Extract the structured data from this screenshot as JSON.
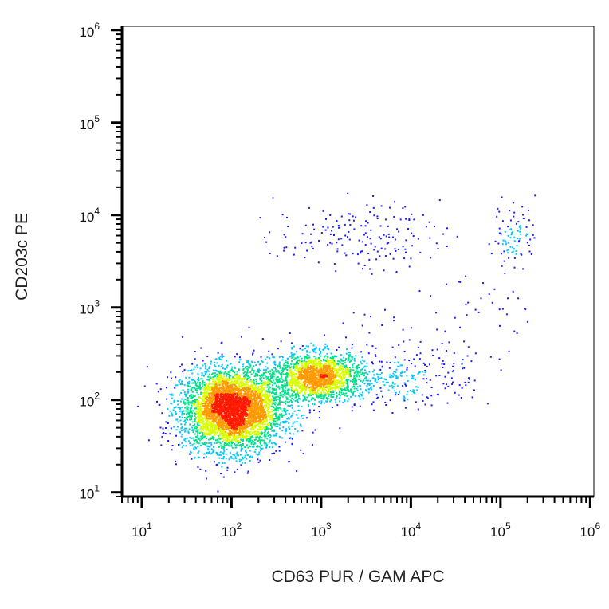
{
  "chart_data": {
    "type": "scatter",
    "title": "",
    "xlabel": "CD63 PUR / GAM APC",
    "ylabel": "CD203c PE",
    "x_scale": "log",
    "y_scale": "log",
    "xlim": [
      6,
      1100000
    ],
    "ylim": [
      9,
      1100000
    ],
    "x_ticks": [
      {
        "value": 10,
        "base": "10",
        "exp": "1"
      },
      {
        "value": 100,
        "base": "10",
        "exp": "2"
      },
      {
        "value": 1000,
        "base": "10",
        "exp": "3"
      },
      {
        "value": 10000,
        "base": "10",
        "exp": "4"
      },
      {
        "value": 100000,
        "base": "10",
        "exp": "5"
      },
      {
        "value": 1000000,
        "base": "10",
        "exp": "6"
      }
    ],
    "y_ticks": [
      {
        "value": 10,
        "base": "10",
        "exp": "1"
      },
      {
        "value": 100,
        "base": "10",
        "exp": "2"
      },
      {
        "value": 1000,
        "base": "10",
        "exp": "3"
      },
      {
        "value": 10000,
        "base": "10",
        "exp": "4"
      },
      {
        "value": 100000,
        "base": "10",
        "exp": "5"
      },
      {
        "value": 1000000,
        "base": "10",
        "exp": "6"
      }
    ],
    "grid": false,
    "legend": "none",
    "density_colormap": [
      "#1a1aff",
      "#00c8ff",
      "#00e08a",
      "#d8ff00",
      "#ff9a00",
      "#ff1a00"
    ],
    "populations": [
      {
        "x_center": 100,
        "y_center": 80,
        "x_spread_decades": 0.28,
        "y_spread_decades": 0.22,
        "relative_size": 0.62,
        "peak_density": 1.0
      },
      {
        "x_center": 900,
        "y_center": 180,
        "x_spread_decades": 0.26,
        "y_spread_decades": 0.13,
        "relative_size": 0.25,
        "peak_density": 0.55
      },
      {
        "x_center": 2500,
        "y_center": 6000,
        "x_spread_decades": 0.45,
        "y_spread_decades": 0.18,
        "relative_size": 0.025,
        "peak_density": 0.05
      },
      {
        "x_center": 140000,
        "y_center": 6500,
        "x_spread_decades": 0.12,
        "y_spread_decades": 0.17,
        "relative_size": 0.012,
        "peak_density": 0.08
      },
      {
        "x_center": 8000,
        "y_center": 170,
        "x_spread_decades": 0.4,
        "y_spread_decades": 0.15,
        "relative_size": 0.03,
        "peak_density": 0.05
      }
    ]
  }
}
